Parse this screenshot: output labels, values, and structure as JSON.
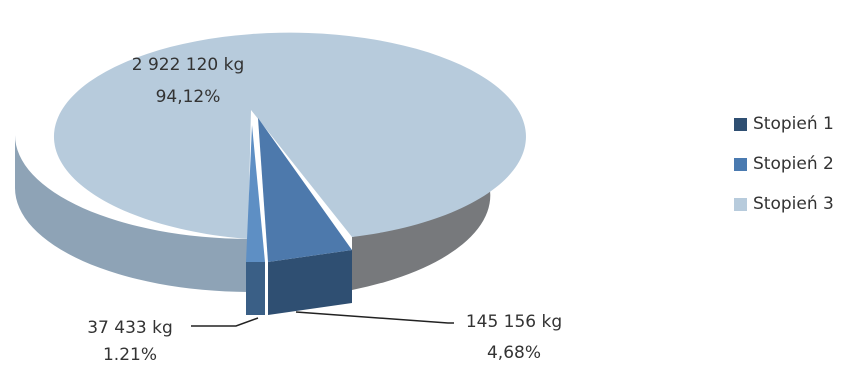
{
  "chart_data": {
    "type": "pie",
    "style": "3d-exploded",
    "series": [
      {
        "name": "Stopień 1",
        "value": 145156,
        "value_label": "145 156 kg",
        "percent_label": "4,68%",
        "color": "#2f4f72"
      },
      {
        "name": "Stopień 2",
        "value": 37433,
        "value_label": "37 433 kg",
        "percent_label": "1.21%",
        "color": "#4a7ab0"
      },
      {
        "name": "Stopień 3",
        "value": 2922120,
        "value_label": "2 922 120 kg",
        "percent_label": "94,12%",
        "color": "#b7cbdc"
      }
    ],
    "legend_position": "right"
  }
}
